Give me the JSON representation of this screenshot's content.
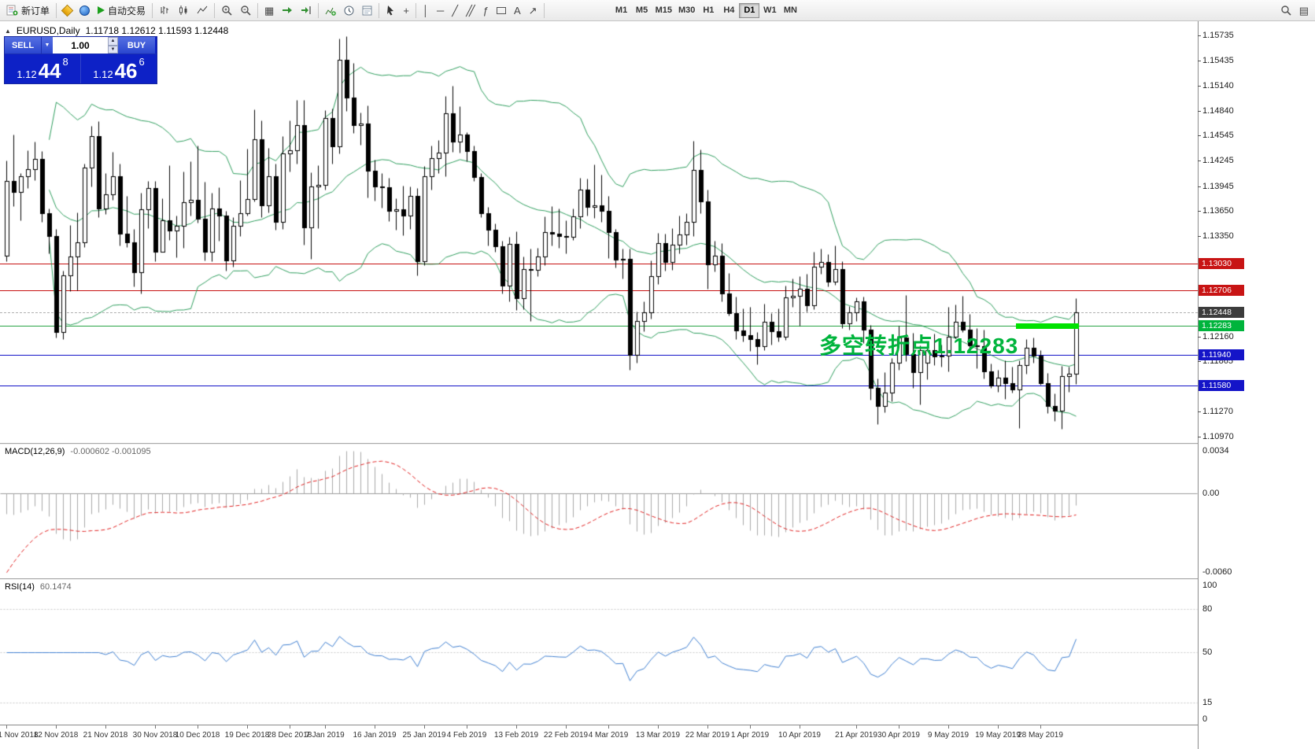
{
  "toolbar": {
    "new_order": "新订单",
    "auto_trading": "自动交易",
    "timeframes": [
      "M1",
      "M5",
      "M15",
      "M30",
      "H1",
      "H4",
      "D1",
      "W1",
      "MN"
    ],
    "active_timeframe": "D1",
    "icons": {
      "vline": "│",
      "hline": "─",
      "trendline": "╱",
      "channel": "╱╱",
      "fibonacci": "ƒ",
      "text": "A",
      "arrow": "↗",
      "tile": "▦",
      "profiles": "▤",
      "crosshair": "+"
    }
  },
  "chart_header": {
    "toggle_icon": "▲",
    "symbol": "EURUSD,Daily",
    "ohlc": "1.11718 1.12612 1.11593 1.12448"
  },
  "trade_panel": {
    "sell_label": "SELL",
    "buy_label": "BUY",
    "volume": "1.00",
    "dd_icon": "▼",
    "up_icon": "▲",
    "down_icon": "▼",
    "sell_price": {
      "prefix": "1.12",
      "big": "44",
      "sup": "8"
    },
    "buy_price": {
      "prefix": "1.12",
      "big": "46",
      "sup": "6"
    }
  },
  "annotation": {
    "text": "多空转折点1.12283",
    "color": "#00b43c"
  },
  "highlight": {
    "price": 1.12283,
    "from_index": 143,
    "to_index": 151,
    "color": "#00e200"
  },
  "price_axis": {
    "labels": [
      "1.15735",
      "1.15435",
      "1.15140",
      "1.14840",
      "1.14545",
      "1.14245",
      "1.13945",
      "1.13650",
      "1.13350",
      "1.12160",
      "1.11865",
      "1.11270",
      "1.10970"
    ],
    "badges": [
      {
        "label": "1.13030",
        "price": 1.1303,
        "badge_color": "#c81414",
        "line_color": "#c81414",
        "line_style": "solid",
        "current": false
      },
      {
        "label": "1.12706",
        "price": 1.12706,
        "badge_color": "#c81414",
        "line_color": "#c81414",
        "line_style": "solid",
        "current": false
      },
      {
        "label": "1.12448",
        "price": 1.12448,
        "badge_color": "#3c3c3c",
        "line_color": "#b0b0b0",
        "line_style": "dashed",
        "current": true
      },
      {
        "label": "1.12283",
        "price": 1.12283,
        "badge_color": "#00b43c",
        "line_color": "#2aa546",
        "line_style": "solid",
        "current": false
      },
      {
        "label": "1.11940",
        "price": 1.1194,
        "badge_color": "#1414c8",
        "line_color": "#1414c8",
        "line_style": "solid",
        "current": false
      },
      {
        "label": "1.11580",
        "price": 1.1158,
        "badge_color": "#1414c8",
        "line_color": "#1414c8",
        "line_style": "solid",
        "current": false
      }
    ]
  },
  "macd_panel": {
    "title": "MACD(12,26,9)",
    "values": "-0.000602 -0.001095",
    "axis_labels": [
      "0.0034",
      "0.00",
      "-0.0060"
    ]
  },
  "rsi_panel": {
    "title": "RSI(14)",
    "value": "60.1474",
    "axis_labels": [
      "100",
      "80",
      "50",
      "15",
      "0"
    ],
    "levels": [
      80,
      50,
      15
    ]
  },
  "time_axis": [
    {
      "label": "1 Nov 2018",
      "i": 0
    },
    {
      "label": "12 Nov 2018",
      "i": 7
    },
    {
      "label": "21 Nov 2018",
      "i": 14
    },
    {
      "label": "30 Nov 2018",
      "i": 21
    },
    {
      "label": "10 Dec 2018",
      "i": 27
    },
    {
      "label": "19 Dec 2018",
      "i": 34
    },
    {
      "label": "28 Dec 2018",
      "i": 40
    },
    {
      "label": "7 Jan 2019",
      "i": 45
    },
    {
      "label": "16 Jan 2019",
      "i": 52
    },
    {
      "label": "25 Jan 2019",
      "i": 59
    },
    {
      "label": "4 Feb 2019",
      "i": 65
    },
    {
      "label": "13 Feb 2019",
      "i": 72
    },
    {
      "label": "22 Feb 2019",
      "i": 79
    },
    {
      "label": "4 Mar 2019",
      "i": 85
    },
    {
      "label": "13 Mar 2019",
      "i": 92
    },
    {
      "label": "22 Mar 2019",
      "i": 99
    },
    {
      "label": "1 Apr 2019",
      "i": 105
    },
    {
      "label": "10 Apr 2019",
      "i": 112
    },
    {
      "label": "21 Apr 2019",
      "i": 120
    },
    {
      "label": "30 Apr 2019",
      "i": 126
    },
    {
      "label": "9 May 2019",
      "i": 133
    },
    {
      "label": "19 May 2019",
      "i": 140
    },
    {
      "label": "28 May 2019",
      "i": 146
    }
  ],
  "chart_data": {
    "type": "candlestick",
    "symbol": "EURUSD",
    "timeframe": "Daily",
    "current_price": 1.12448,
    "price_range": [
      1.10905,
      1.15903
    ],
    "horizontal_levels": [
      1.1303,
      1.12706,
      1.12283,
      1.1194,
      1.1158
    ],
    "indicators": {
      "bollinger": {
        "period": 20,
        "deviation": 2,
        "color": "#2f9e5e"
      },
      "macd": {
        "fast": 12,
        "slow": 26,
        "signal": 9,
        "current_main": -0.000602,
        "current_signal": -0.001095
      },
      "rsi": {
        "period": 14,
        "current": 60.1474,
        "color": "#3f7fd0"
      }
    },
    "ohlc": [
      [
        1.1312,
        1.1425,
        1.1305,
        1.1401
      ],
      [
        1.1401,
        1.1456,
        1.1371,
        1.1388
      ],
      [
        1.1388,
        1.141,
        1.1354,
        1.1406
      ],
      [
        1.1406,
        1.1437,
        1.1392,
        1.1415
      ],
      [
        1.1415,
        1.1447,
        1.1402,
        1.1427
      ],
      [
        1.1427,
        1.1436,
        1.1352,
        1.1362
      ],
      [
        1.1362,
        1.1368,
        1.1315,
        1.1335
      ],
      [
        1.1335,
        1.1344,
        1.1215,
        1.1221
      ],
      [
        1.1221,
        1.1294,
        1.1213,
        1.1289
      ],
      [
        1.1289,
        1.1348,
        1.127,
        1.1311
      ],
      [
        1.1311,
        1.1363,
        1.1271,
        1.1328
      ],
      [
        1.1328,
        1.1421,
        1.1322,
        1.1417
      ],
      [
        1.1417,
        1.1466,
        1.1394,
        1.1454
      ],
      [
        1.1454,
        1.1472,
        1.1358,
        1.1368
      ],
      [
        1.1368,
        1.141,
        1.1361,
        1.1385
      ],
      [
        1.1385,
        1.1435,
        1.1378,
        1.1406
      ],
      [
        1.1406,
        1.1421,
        1.1324,
        1.1338
      ],
      [
        1.1338,
        1.1383,
        1.1322,
        1.1328
      ],
      [
        1.1328,
        1.1344,
        1.1275,
        1.1292
      ],
      [
        1.1292,
        1.1387,
        1.1267,
        1.1367
      ],
      [
        1.1367,
        1.1401,
        1.1345,
        1.1392
      ],
      [
        1.1392,
        1.1401,
        1.1305,
        1.1317
      ],
      [
        1.1317,
        1.138,
        1.1317,
        1.1354
      ],
      [
        1.1354,
        1.1419,
        1.1331,
        1.1342
      ],
      [
        1.1342,
        1.136,
        1.131,
        1.1347
      ],
      [
        1.1347,
        1.1412,
        1.1321,
        1.1375
      ],
      [
        1.1375,
        1.1424,
        1.136,
        1.1378
      ],
      [
        1.1378,
        1.1443,
        1.1351,
        1.1356
      ],
      [
        1.1356,
        1.14,
        1.1306,
        1.1317
      ],
      [
        1.1317,
        1.1387,
        1.1305,
        1.1368
      ],
      [
        1.1368,
        1.1393,
        1.133,
        1.136
      ],
      [
        1.136,
        1.1365,
        1.1294,
        1.1306
      ],
      [
        1.1306,
        1.1358,
        1.1299,
        1.1347
      ],
      [
        1.1347,
        1.1402,
        1.1335,
        1.1362
      ],
      [
        1.1362,
        1.1439,
        1.136,
        1.1379
      ],
      [
        1.1379,
        1.1486,
        1.1376,
        1.145
      ],
      [
        1.145,
        1.1473,
        1.1358,
        1.1372
      ],
      [
        1.1372,
        1.144,
        1.1363,
        1.1406
      ],
      [
        1.1406,
        1.1421,
        1.1343,
        1.1352
      ],
      [
        1.1352,
        1.1454,
        1.1344,
        1.1433
      ],
      [
        1.1433,
        1.1473,
        1.1412,
        1.1437
      ],
      [
        1.1437,
        1.1497,
        1.1421,
        1.1467
      ],
      [
        1.1467,
        1.1497,
        1.1325,
        1.1346
      ],
      [
        1.1346,
        1.1411,
        1.1308,
        1.1394
      ],
      [
        1.1394,
        1.1419,
        1.1345,
        1.1396
      ],
      [
        1.1396,
        1.1485,
        1.139,
        1.1475
      ],
      [
        1.1475,
        1.1487,
        1.1421,
        1.1442
      ],
      [
        1.1442,
        1.157,
        1.1433,
        1.1545
      ],
      [
        1.1545,
        1.1573,
        1.1484,
        1.15
      ],
      [
        1.15,
        1.1541,
        1.1458,
        1.1467
      ],
      [
        1.1467,
        1.1482,
        1.1444,
        1.1469
      ],
      [
        1.1469,
        1.149,
        1.1381,
        1.1413
      ],
      [
        1.1413,
        1.1426,
        1.1377,
        1.1394
      ],
      [
        1.1394,
        1.141,
        1.1369,
        1.1393
      ],
      [
        1.1393,
        1.1404,
        1.1353,
        1.1365
      ],
      [
        1.1365,
        1.138,
        1.1343,
        1.1367
      ],
      [
        1.1367,
        1.1395,
        1.1336,
        1.136
      ],
      [
        1.136,
        1.1394,
        1.1344,
        1.1383
      ],
      [
        1.1383,
        1.1392,
        1.1289,
        1.1305
      ],
      [
        1.1305,
        1.1418,
        1.1301,
        1.1406
      ],
      [
        1.1406,
        1.1443,
        1.139,
        1.1428
      ],
      [
        1.1428,
        1.1449,
        1.141,
        1.1434
      ],
      [
        1.1434,
        1.1502,
        1.1406,
        1.1481
      ],
      [
        1.1481,
        1.1514,
        1.1435,
        1.1447
      ],
      [
        1.1447,
        1.1489,
        1.1434,
        1.1456
      ],
      [
        1.1456,
        1.1459,
        1.1424,
        1.1436
      ],
      [
        1.1436,
        1.1443,
        1.1401,
        1.1405
      ],
      [
        1.1405,
        1.141,
        1.1358,
        1.1362
      ],
      [
        1.1362,
        1.137,
        1.1324,
        1.1343
      ],
      [
        1.1343,
        1.135,
        1.1317,
        1.1323
      ],
      [
        1.1323,
        1.133,
        1.1267,
        1.1276
      ],
      [
        1.1276,
        1.1334,
        1.1258,
        1.1326
      ],
      [
        1.1326,
        1.1341,
        1.1247,
        1.1261
      ],
      [
        1.1261,
        1.1311,
        1.1248,
        1.1296
      ],
      [
        1.1296,
        1.132,
        1.1234,
        1.1295
      ],
      [
        1.1295,
        1.1321,
        1.1288,
        1.1311
      ],
      [
        1.1311,
        1.1359,
        1.1301,
        1.134
      ],
      [
        1.134,
        1.1371,
        1.1324,
        1.1338
      ],
      [
        1.1338,
        1.1368,
        1.1321,
        1.1335
      ],
      [
        1.1335,
        1.1354,
        1.1315,
        1.1334
      ],
      [
        1.1334,
        1.1368,
        1.1331,
        1.1359
      ],
      [
        1.1359,
        1.1404,
        1.1345,
        1.139
      ],
      [
        1.139,
        1.1403,
        1.136,
        1.137
      ],
      [
        1.137,
        1.142,
        1.1357,
        1.1372
      ],
      [
        1.1372,
        1.1408,
        1.1352,
        1.1365
      ],
      [
        1.1365,
        1.1383,
        1.1309,
        1.134
      ],
      [
        1.134,
        1.1344,
        1.1298,
        1.1307
      ],
      [
        1.1307,
        1.132,
        1.1285,
        1.1308
      ],
      [
        1.1308,
        1.132,
        1.1176,
        1.1194
      ],
      [
        1.1194,
        1.1246,
        1.1185,
        1.1234
      ],
      [
        1.1234,
        1.1258,
        1.1222,
        1.1245
      ],
      [
        1.1245,
        1.1306,
        1.1237,
        1.1288
      ],
      [
        1.1288,
        1.1339,
        1.1278,
        1.1327
      ],
      [
        1.1327,
        1.1338,
        1.1294,
        1.1304
      ],
      [
        1.1304,
        1.1345,
        1.1295,
        1.1325
      ],
      [
        1.1325,
        1.136,
        1.1315,
        1.1337
      ],
      [
        1.1337,
        1.1362,
        1.1325,
        1.1352
      ],
      [
        1.1352,
        1.1448,
        1.1335,
        1.1414
      ],
      [
        1.1414,
        1.1438,
        1.1362,
        1.1376
      ],
      [
        1.1376,
        1.139,
        1.1273,
        1.1302
      ],
      [
        1.1302,
        1.133,
        1.1293,
        1.1312
      ],
      [
        1.1312,
        1.1327,
        1.1258,
        1.1267
      ],
      [
        1.1267,
        1.1291,
        1.1241,
        1.1244
      ],
      [
        1.1244,
        1.1263,
        1.1213,
        1.1223
      ],
      [
        1.1223,
        1.1249,
        1.121,
        1.1218
      ],
      [
        1.1218,
        1.1251,
        1.1199,
        1.1213
      ],
      [
        1.1213,
        1.1221,
        1.1183,
        1.1204
      ],
      [
        1.1204,
        1.1255,
        1.12,
        1.1233
      ],
      [
        1.1233,
        1.1244,
        1.1206,
        1.1222
      ],
      [
        1.1222,
        1.1249,
        1.121,
        1.1216
      ],
      [
        1.1216,
        1.1276,
        1.1212,
        1.1262
      ],
      [
        1.1262,
        1.1285,
        1.1251,
        1.1264
      ],
      [
        1.1264,
        1.1288,
        1.1229,
        1.1273
      ],
      [
        1.1273,
        1.129,
        1.1246,
        1.1253
      ],
      [
        1.1253,
        1.1317,
        1.1248,
        1.1299
      ],
      [
        1.1299,
        1.132,
        1.129,
        1.1304
      ],
      [
        1.1304,
        1.1314,
        1.1275,
        1.1281
      ],
      [
        1.1281,
        1.1324,
        1.1277,
        1.1296
      ],
      [
        1.1296,
        1.1305,
        1.1226,
        1.1232
      ],
      [
        1.1232,
        1.1252,
        1.1224,
        1.1245
      ],
      [
        1.1245,
        1.1262,
        1.1234,
        1.1258
      ],
      [
        1.1258,
        1.1263,
        1.1208,
        1.1224
      ],
      [
        1.1224,
        1.123,
        1.1141,
        1.1155
      ],
      [
        1.1155,
        1.1166,
        1.1112,
        1.1133
      ],
      [
        1.1133,
        1.1174,
        1.1126,
        1.1149
      ],
      [
        1.1149,
        1.119,
        1.1139,
        1.1185
      ],
      [
        1.1185,
        1.1229,
        1.1176,
        1.1215
      ],
      [
        1.1215,
        1.1265,
        1.1187,
        1.1195
      ],
      [
        1.1195,
        1.122,
        1.1155,
        1.1174
      ],
      [
        1.1174,
        1.1205,
        1.1135,
        1.12
      ],
      [
        1.1185,
        1.1204,
        1.1165,
        1.12
      ],
      [
        1.12,
        1.1219,
        1.1182,
        1.1192
      ],
      [
        1.1192,
        1.1206,
        1.118,
        1.1193
      ],
      [
        1.1193,
        1.1251,
        1.1175,
        1.1216
      ],
      [
        1.1216,
        1.1254,
        1.1214,
        1.1233
      ],
      [
        1.1233,
        1.1264,
        1.1221,
        1.1224
      ],
      [
        1.1224,
        1.1243,
        1.1202,
        1.1205
      ],
      [
        1.1205,
        1.1226,
        1.1178,
        1.1204
      ],
      [
        1.1204,
        1.1224,
        1.1166,
        1.1175
      ],
      [
        1.1175,
        1.1184,
        1.1155,
        1.1158
      ],
      [
        1.1158,
        1.1176,
        1.115,
        1.1167
      ],
      [
        1.1167,
        1.1188,
        1.1142,
        1.1161
      ],
      [
        1.1161,
        1.118,
        1.1149,
        1.1153
      ],
      [
        1.1153,
        1.1188,
        1.1107,
        1.1182
      ],
      [
        1.1182,
        1.1213,
        1.1172,
        1.1203
      ],
      [
        1.1203,
        1.1215,
        1.1185,
        1.1193
      ],
      [
        1.1193,
        1.12,
        1.1159,
        1.1161
      ],
      [
        1.1161,
        1.1173,
        1.1125,
        1.1133
      ],
      [
        1.1133,
        1.1148,
        1.1116,
        1.1128
      ],
      [
        1.1128,
        1.1181,
        1.1106,
        1.1169
      ],
      [
        1.1169,
        1.118,
        1.115,
        1.1172
      ],
      [
        1.11718,
        1.12612,
        1.11593,
        1.12448
      ]
    ]
  }
}
